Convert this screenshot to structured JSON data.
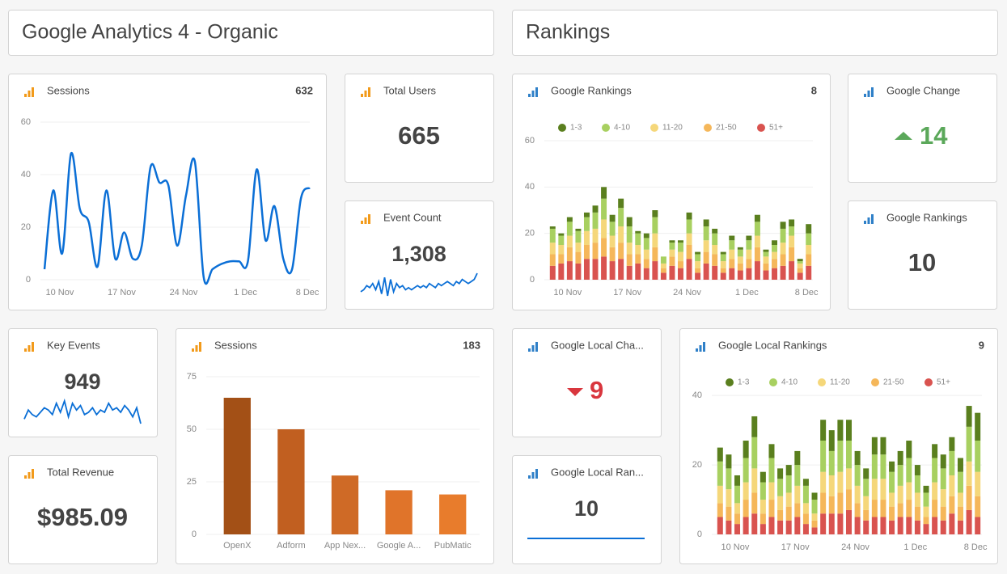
{
  "headers": [
    "Google Analytics 4 - Organic",
    "Rankings"
  ],
  "widgets": [
    {
      "title": "Total Users",
      "value": 665
    },
    {
      "title": "Event Count",
      "value": "1,308",
      "trend": [
        5,
        6,
        8,
        7,
        9,
        6,
        10,
        4,
        12,
        3,
        11,
        5,
        9,
        7,
        8,
        6,
        7,
        6,
        7,
        8,
        7,
        8,
        7,
        9,
        8,
        7,
        9,
        8,
        9,
        10,
        9,
        8,
        10,
        9,
        11,
        10,
        9,
        10,
        11,
        14
      ]
    },
    {
      "title": "Google Change",
      "value": 14
    },
    {
      "title": "Google Rankings",
      "value": 10
    },
    {
      "title": "Key Events",
      "value": 949,
      "trend": [
        5,
        9,
        7,
        6,
        8,
        10,
        9,
        7,
        12,
        8,
        13,
        6,
        12,
        9,
        11,
        7,
        8,
        10,
        7,
        9,
        8,
        12,
        9,
        10,
        8,
        11,
        9,
        6,
        10,
        3
      ]
    },
    {
      "title": "Total Revenue",
      "value": "$985.09"
    },
    {
      "title": "Google Local Cha...",
      "value": 9
    },
    {
      "title": "Google Local Ran...",
      "value": 10
    }
  ],
  "chart_data": [
    {
      "type": "line",
      "title": "Sessions",
      "total": 632,
      "color": "#0b6fd6",
      "grid": true,
      "categories": [
        null,
        "10 Nov",
        null,
        null,
        null,
        null,
        null,
        null,
        "17 Nov",
        null,
        null,
        null,
        null,
        null,
        null,
        "24 Nov",
        null,
        null,
        null,
        null,
        null,
        null,
        "1 Dec",
        null,
        null,
        null,
        null,
        null,
        null,
        "8 Dec",
        null
      ],
      "values": [
        4,
        34,
        10,
        48,
        27,
        22,
        5,
        34,
        8,
        18,
        8,
        13,
        43,
        37,
        36,
        13,
        32,
        45,
        1,
        4,
        6,
        7,
        7,
        7,
        42,
        15,
        28,
        8,
        4,
        31,
        35
      ],
      "ylim": [
        0,
        60
      ],
      "yticks": [
        0,
        20,
        40,
        60
      ]
    },
    {
      "type": "stacked-bar",
      "title": "Google Rankings",
      "total": 8,
      "grid": true,
      "legend": "top",
      "categories": [
        null,
        "10 Nov",
        null,
        null,
        null,
        null,
        null,
        null,
        "17 Nov",
        null,
        null,
        null,
        null,
        null,
        null,
        "24 Nov",
        null,
        null,
        null,
        null,
        null,
        null,
        "1 Dec",
        null,
        null,
        null,
        null,
        null,
        null,
        "8 Dec",
        null
      ],
      "series": [
        {
          "name": "1-3",
          "color": "#5a7f1e",
          "values": [
            1,
            1,
            2,
            1,
            2,
            3,
            5,
            3,
            4,
            4,
            1,
            2,
            3,
            0,
            1,
            1,
            3,
            1,
            3,
            2,
            1,
            2,
            1,
            2,
            3,
            1,
            2,
            3,
            3,
            1,
            4
          ]
        },
        {
          "name": "4-10",
          "color": "#a8d060",
          "values": [
            6,
            4,
            6,
            5,
            6,
            7,
            9,
            6,
            8,
            7,
            5,
            5,
            7,
            3,
            3,
            4,
            6,
            3,
            6,
            5,
            3,
            4,
            3,
            4,
            6,
            2,
            3,
            6,
            4,
            1,
            5
          ]
        },
        {
          "name": "11-20",
          "color": "#f5d77a",
          "values": [
            5,
            4,
            5,
            4,
            6,
            6,
            8,
            5,
            7,
            5,
            4,
            4,
            6,
            2,
            3,
            4,
            5,
            3,
            5,
            4,
            3,
            4,
            3,
            4,
            5,
            3,
            3,
            5,
            5,
            2,
            4
          ]
        },
        {
          "name": "21-50",
          "color": "#f5b75a",
          "values": [
            5,
            4,
            6,
            5,
            6,
            7,
            8,
            6,
            7,
            5,
            4,
            4,
            6,
            2,
            4,
            3,
            6,
            2,
            5,
            5,
            2,
            4,
            3,
            4,
            6,
            3,
            4,
            5,
            6,
            2,
            5
          ]
        },
        {
          "name": "51+",
          "color": "#d9534f",
          "values": [
            6,
            7,
            8,
            7,
            9,
            9,
            10,
            8,
            9,
            6,
            7,
            5,
            8,
            3,
            6,
            5,
            9,
            3,
            7,
            6,
            3,
            5,
            4,
            5,
            8,
            4,
            5,
            6,
            8,
            3,
            6
          ]
        }
      ],
      "ylim": [
        0,
        60
      ],
      "yticks": [
        0,
        20,
        40,
        60
      ]
    },
    {
      "type": "bar",
      "title": "Sessions",
      "total": 183,
      "grid": true,
      "categories": [
        "OpenX",
        "Adform",
        "App Nex...",
        "Google A...",
        "PubMatic"
      ],
      "values": [
        65,
        50,
        28,
        21,
        19
      ],
      "colors": [
        "#a35016",
        "#c15f20",
        "#cf6a26",
        "#e0742a",
        "#e87c2c"
      ],
      "ylim": [
        0,
        75
      ],
      "yticks": [
        0,
        25,
        50,
        75
      ]
    },
    {
      "type": "stacked-bar",
      "title": "Google Local Rankings",
      "total": 9,
      "grid": true,
      "legend": "top",
      "categories": [
        null,
        "10 Nov",
        null,
        null,
        null,
        null,
        null,
        null,
        "17 Nov",
        null,
        null,
        null,
        null,
        null,
        null,
        "24 Nov",
        null,
        null,
        null,
        null,
        null,
        null,
        "1 Dec",
        null,
        null,
        null,
        null,
        null,
        null,
        "8 Dec",
        null
      ],
      "series": [
        {
          "name": "1-3",
          "color": "#5a7f1e",
          "values": [
            4,
            4,
            3,
            5,
            6,
            3,
            4,
            3,
            3,
            4,
            2,
            2,
            6,
            6,
            6,
            6,
            4,
            3,
            5,
            5,
            3,
            4,
            5,
            3,
            2,
            4,
            4,
            4,
            4,
            6,
            8
          ]
        },
        {
          "name": "4-10",
          "color": "#a8d060",
          "values": [
            7,
            6,
            5,
            7,
            9,
            5,
            7,
            5,
            5,
            6,
            5,
            4,
            9,
            7,
            9,
            8,
            6,
            5,
            7,
            7,
            6,
            6,
            7,
            5,
            4,
            7,
            6,
            7,
            6,
            10,
            9
          ]
        },
        {
          "name": "11-20",
          "color": "#f5d77a",
          "values": [
            5,
            5,
            3,
            5,
            7,
            4,
            5,
            4,
            4,
            5,
            3,
            2,
            6,
            6,
            6,
            6,
            5,
            4,
            6,
            6,
            4,
            5,
            5,
            4,
            3,
            5,
            5,
            6,
            4,
            7,
            7
          ]
        },
        {
          "name": "21-50",
          "color": "#f5b75a",
          "values": [
            4,
            4,
            3,
            5,
            6,
            3,
            5,
            3,
            4,
            4,
            3,
            2,
            6,
            5,
            6,
            6,
            4,
            3,
            5,
            5,
            4,
            4,
            5,
            4,
            2,
            5,
            4,
            5,
            4,
            7,
            6
          ]
        },
        {
          "name": "51+",
          "color": "#d9534f",
          "values": [
            5,
            4,
            3,
            5,
            6,
            3,
            5,
            4,
            4,
            5,
            3,
            2,
            6,
            6,
            6,
            7,
            5,
            4,
            5,
            5,
            4,
            5,
            5,
            4,
            3,
            5,
            4,
            6,
            4,
            7,
            5
          ]
        }
      ],
      "ylim": [
        0,
        44
      ],
      "yticks": [
        0,
        20,
        40
      ]
    }
  ]
}
